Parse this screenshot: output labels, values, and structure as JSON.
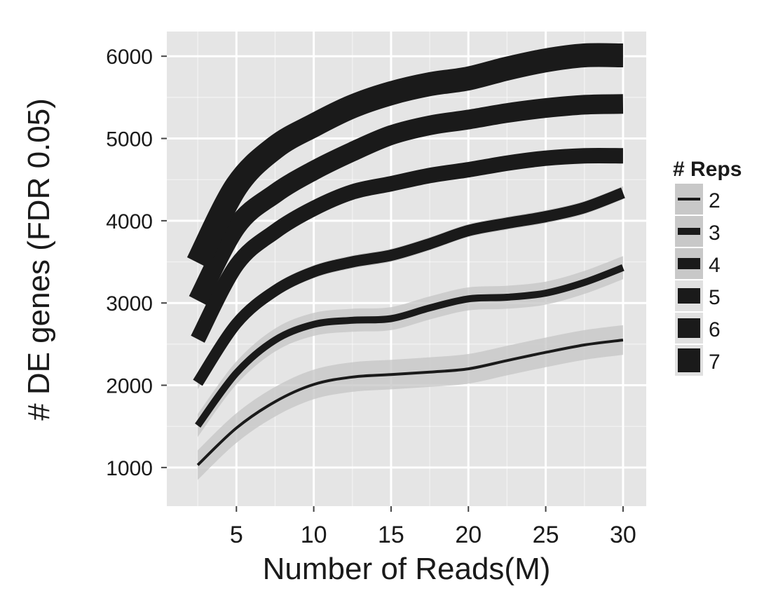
{
  "chart_data": {
    "type": "line",
    "title": "",
    "xlabel": "Number of Reads(M)",
    "ylabel": "# DE genes (FDR 0.05)",
    "xlim": [
      0.5,
      31.5
    ],
    "ylim": [
      530,
      6300
    ],
    "x_ticks": [
      5,
      10,
      15,
      20,
      25,
      30
    ],
    "y_ticks": [
      1000,
      2000,
      3000,
      4000,
      5000,
      6000
    ],
    "grid": true,
    "panel_background": "#e5e5e5",
    "grid_color": "#ffffff",
    "line_color": "#1a1a1a",
    "ribbon_color": "#c4c4c4",
    "legend": {
      "title": "# Reps",
      "position": "right",
      "entries": [
        "2",
        "3",
        "4",
        "5",
        "6",
        "7"
      ]
    },
    "x": [
      2.5,
      5,
      7.5,
      10,
      12.5,
      15,
      17.5,
      20,
      22.5,
      25,
      27.5,
      30
    ],
    "series": [
      {
        "name": "2",
        "values": [
          1030,
          1480,
          1800,
          2010,
          2100,
          2130,
          2160,
          2200,
          2300,
          2400,
          2490,
          2550
        ],
        "band": 180
      },
      {
        "name": "3",
        "values": [
          1510,
          2150,
          2550,
          2740,
          2790,
          2810,
          2940,
          3050,
          3070,
          3120,
          3250,
          3430
        ],
        "band": 140
      },
      {
        "name": "4",
        "values": [
          2030,
          2750,
          3150,
          3380,
          3500,
          3580,
          3720,
          3880,
          3970,
          4050,
          4160,
          4340
        ],
        "band": 80
      },
      {
        "name": "5",
        "values": [
          2560,
          3460,
          3870,
          4150,
          4350,
          4450,
          4550,
          4620,
          4700,
          4760,
          4790,
          4790
        ],
        "band": 0
      },
      {
        "name": "6",
        "values": [
          3030,
          3930,
          4330,
          4610,
          4840,
          5040,
          5160,
          5230,
          5310,
          5370,
          5410,
          5420
        ],
        "band": 0
      },
      {
        "name": "7",
        "values": [
          3490,
          4420,
          4890,
          5160,
          5390,
          5550,
          5660,
          5730,
          5850,
          5950,
          6010,
          6010
        ],
        "band": 0
      }
    ]
  }
}
